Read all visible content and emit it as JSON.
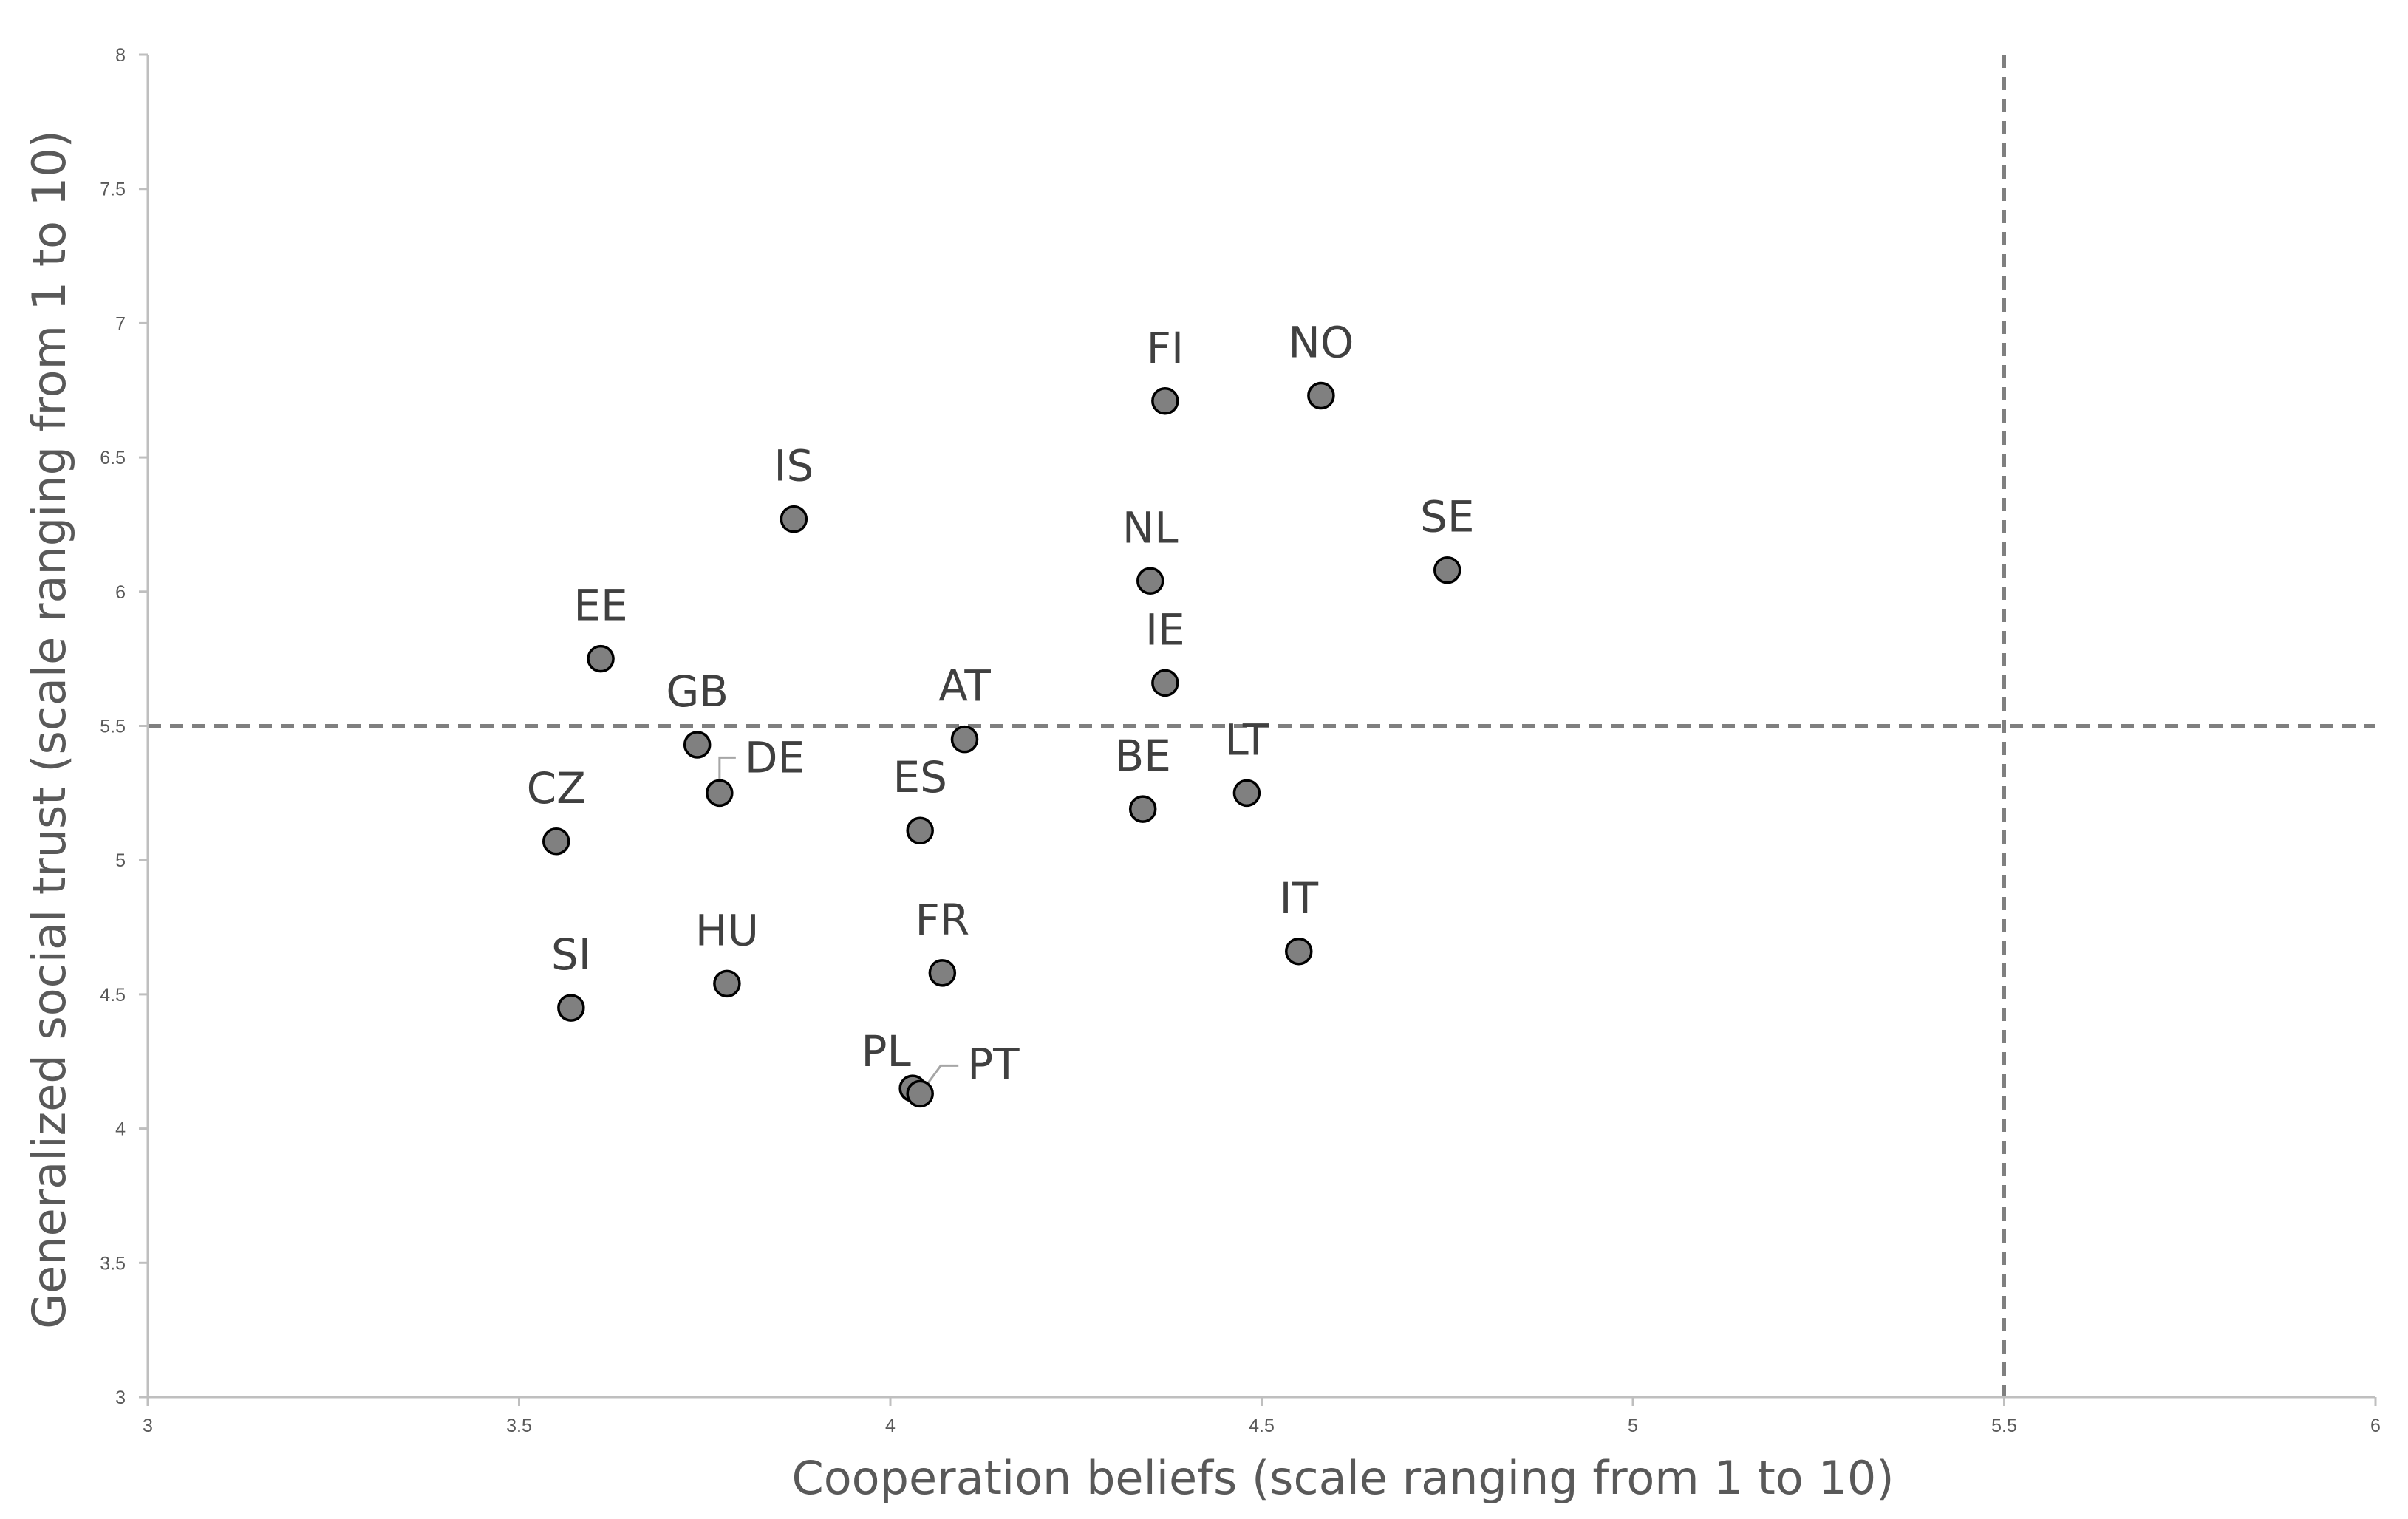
{
  "chart_data": {
    "type": "scatter",
    "title": "",
    "xlabel": "Cooperation beliefs (scale ranging from 1 to 10)",
    "ylabel": "Generalized social trust  (scale ranging from 1 to 10)",
    "xlim": [
      3,
      6
    ],
    "ylim": [
      3,
      8
    ],
    "x_ticks": [
      "3",
      "3.5",
      "4",
      "4.5",
      "5",
      "5.5",
      "6"
    ],
    "y_ticks": [
      "3",
      "3.5",
      "4",
      "4.5",
      "5",
      "5.5",
      "6",
      "6.5",
      "7",
      "7.5",
      "8"
    ],
    "grid": false,
    "reference_lines": [
      {
        "axis": "x",
        "value": 5.5,
        "style": "dashed"
      },
      {
        "axis": "y",
        "value": 5.5,
        "style": "dashed"
      }
    ],
    "marker_color": "#808080",
    "marker_edge_color": "#000000",
    "line_color": "#7f7f7f",
    "points": [
      {
        "label": "FI",
        "x": 4.37,
        "y": 6.71
      },
      {
        "label": "NO",
        "x": 4.58,
        "y": 6.73
      },
      {
        "label": "IS",
        "x": 3.87,
        "y": 6.27
      },
      {
        "label": "NL",
        "x": 4.35,
        "y": 6.04
      },
      {
        "label": "SE",
        "x": 4.75,
        "y": 6.08
      },
      {
        "label": "EE",
        "x": 3.61,
        "y": 5.75
      },
      {
        "label": "IE",
        "x": 4.37,
        "y": 5.66
      },
      {
        "label": "GB",
        "x": 3.74,
        "y": 5.43
      },
      {
        "label": "AT",
        "x": 4.1,
        "y": 5.45
      },
      {
        "label": "DE",
        "x": 3.77,
        "y": 5.25
      },
      {
        "label": "LT",
        "x": 4.48,
        "y": 5.25
      },
      {
        "label": "BE",
        "x": 4.34,
        "y": 5.19
      },
      {
        "label": "ES",
        "x": 4.04,
        "y": 5.11
      },
      {
        "label": "CZ",
        "x": 3.55,
        "y": 5.07
      },
      {
        "label": "IT",
        "x": 4.55,
        "y": 4.66
      },
      {
        "label": "FR",
        "x": 4.07,
        "y": 4.58
      },
      {
        "label": "HU",
        "x": 3.78,
        "y": 4.54
      },
      {
        "label": "SI",
        "x": 3.57,
        "y": 4.45
      },
      {
        "label": "PL",
        "x": 4.03,
        "y": 4.15
      },
      {
        "label": "PT",
        "x": 4.04,
        "y": 4.13
      }
    ]
  }
}
